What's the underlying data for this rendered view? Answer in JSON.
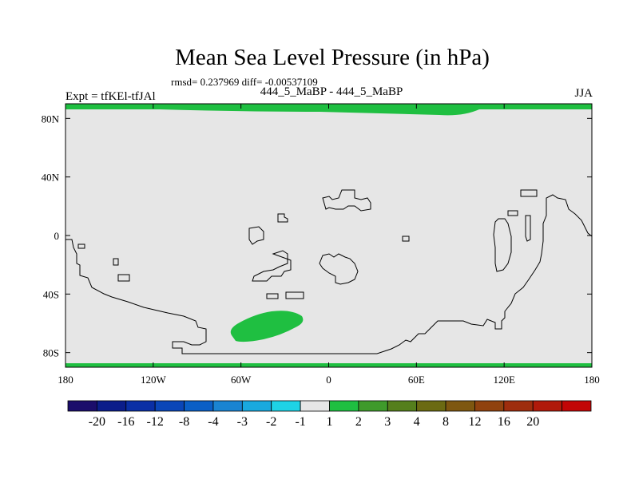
{
  "header": {
    "title": "Mean Sea Level Pressure (in hPa)",
    "subtitle": "rmsd= 0.237969 diff= -0.00537109",
    "left_label": "Expt = tfKEl-tfJAl",
    "center_label": "444_5_MaBP - 444_5_MaBP",
    "right_label": "JJA"
  },
  "map": {
    "projection": "cylindrical-equidistant",
    "x_ticks": [
      "180",
      "120W",
      "60W",
      "0",
      "60E",
      "120E",
      "180"
    ],
    "y_ticks": [
      "80N",
      "40N",
      "0",
      "40S",
      "80S"
    ],
    "x_range": [
      -180,
      180
    ],
    "y_range": [
      -90,
      90
    ],
    "background_color": "#e6e6e6",
    "coastline_color": "#000000",
    "anomaly_regions": [
      {
        "name": "arctic-positive-band",
        "value_bin": "1 to 2",
        "color": "#1fbf41"
      },
      {
        "name": "south-pacific-positive-anomaly",
        "value_bin": "1 to 2",
        "color": "#1fbf41"
      },
      {
        "name": "antarctic-positive-band",
        "value_bin": "1 to 2",
        "color": "#1fbf41"
      }
    ]
  },
  "colorbar": {
    "colors": [
      "#1b0d6b",
      "#0b1d8a",
      "#0a2fa5",
      "#0a46b8",
      "#0a5fc6",
      "#1a84d2",
      "#19a9de",
      "#1ed3e6",
      "#e6e6e6",
      "#1fbf41",
      "#3f9a2b",
      "#557f1c",
      "#6b6a12",
      "#7e5710",
      "#90420f",
      "#9e2d0d",
      "#b01a0a",
      "#c20606"
    ],
    "labels": [
      "-20",
      "-16",
      "-12",
      "-8",
      "-4",
      "-3",
      "-2",
      "-1",
      "1",
      "2",
      "3",
      "4",
      "8",
      "12",
      "16",
      "20"
    ]
  }
}
